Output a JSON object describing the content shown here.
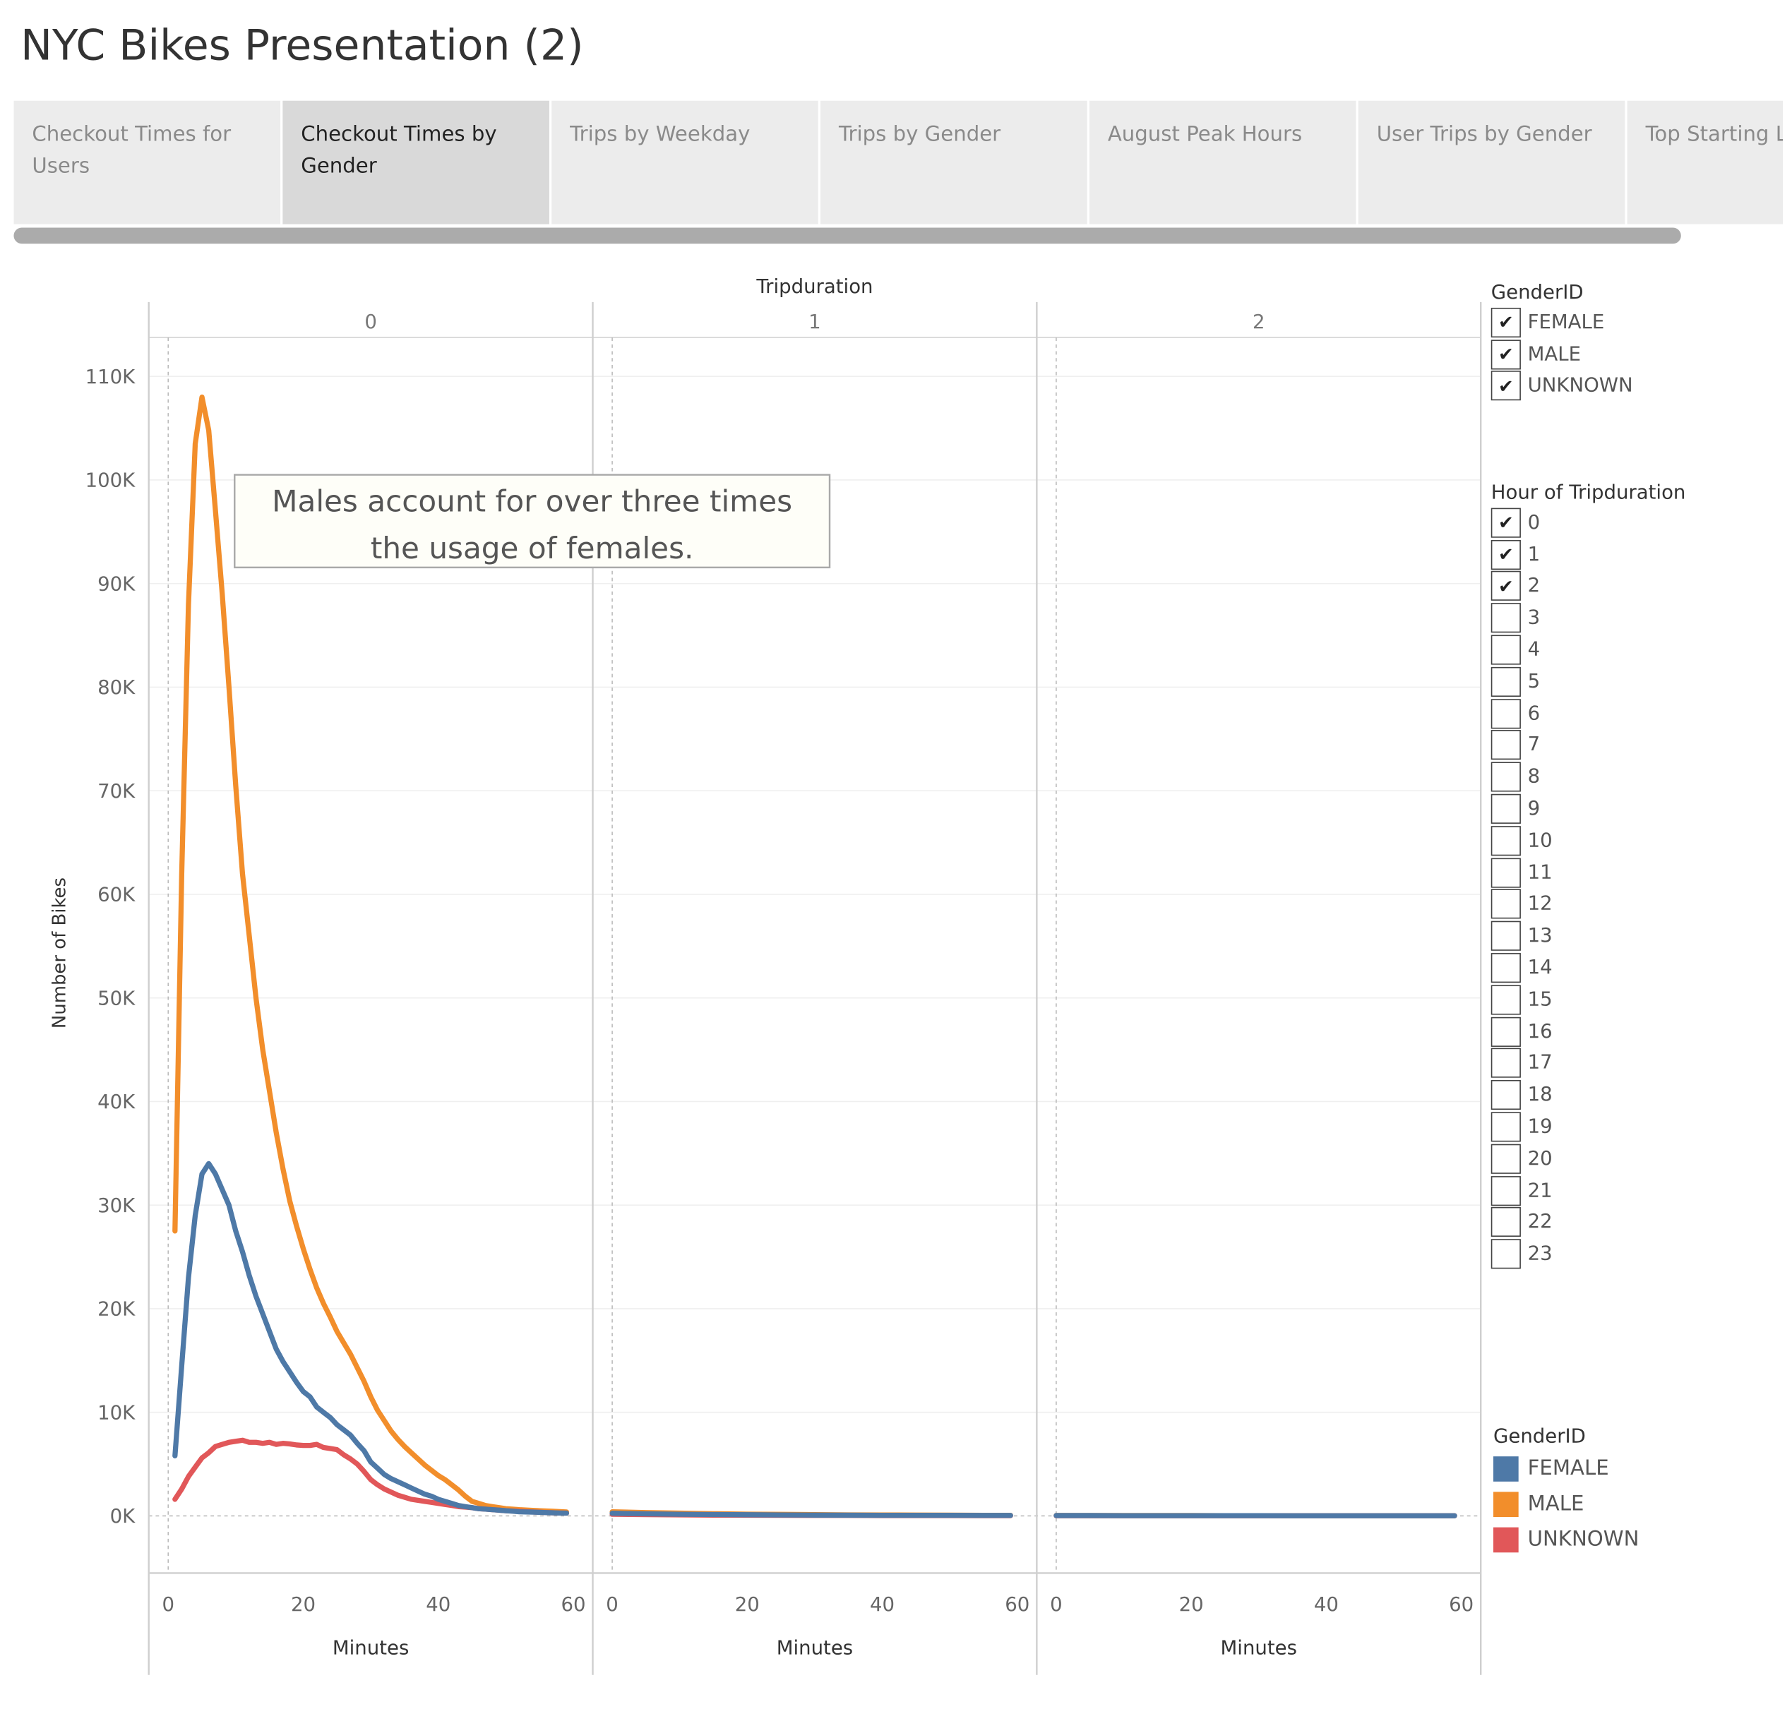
{
  "dashboard_title": "NYC Bikes Presentation (2)",
  "tabs": [
    {
      "label": "Checkout Times for Users",
      "active": false
    },
    {
      "label": "Checkout Times by Gender",
      "active": true
    },
    {
      "label": "Trips by Weekday",
      "active": false
    },
    {
      "label": "Trips by Gender",
      "active": false
    },
    {
      "label": "August Peak Hours",
      "active": false
    },
    {
      "label": "User Trips by Gender",
      "active": false
    },
    {
      "label": "Top Starting Locations",
      "active": false
    }
  ],
  "gender_filter": {
    "title": "GenderID",
    "options": [
      {
        "label": "FEMALE",
        "checked": true
      },
      {
        "label": "MALE",
        "checked": true
      },
      {
        "label": "UNKNOWN",
        "checked": true
      }
    ]
  },
  "hour_filter": {
    "title": "Hour of Tripduration",
    "options": [
      {
        "label": "0",
        "checked": true
      },
      {
        "label": "1",
        "checked": true
      },
      {
        "label": "2",
        "checked": true
      },
      {
        "label": "3",
        "checked": false
      },
      {
        "label": "4",
        "checked": false
      },
      {
        "label": "5",
        "checked": false
      },
      {
        "label": "6",
        "checked": false
      },
      {
        "label": "7",
        "checked": false
      },
      {
        "label": "8",
        "checked": false
      },
      {
        "label": "9",
        "checked": false
      },
      {
        "label": "10",
        "checked": false
      },
      {
        "label": "11",
        "checked": false
      },
      {
        "label": "12",
        "checked": false
      },
      {
        "label": "13",
        "checked": false
      },
      {
        "label": "14",
        "checked": false
      },
      {
        "label": "15",
        "checked": false
      },
      {
        "label": "16",
        "checked": false
      },
      {
        "label": "17",
        "checked": false
      },
      {
        "label": "18",
        "checked": false
      },
      {
        "label": "19",
        "checked": false
      },
      {
        "label": "20",
        "checked": false
      },
      {
        "label": "21",
        "checked": false
      },
      {
        "label": "22",
        "checked": false
      },
      {
        "label": "23",
        "checked": false
      }
    ]
  },
  "color_legend": {
    "title": "GenderID",
    "items": [
      {
        "label": "FEMALE",
        "color": "#4e79a7"
      },
      {
        "label": "MALE",
        "color": "#f28e2b"
      },
      {
        "label": "UNKNOWN",
        "color": "#e15759"
      }
    ]
  },
  "chart_data": {
    "type": "line",
    "column_header": "Tripduration",
    "panels": [
      "0",
      "1",
      "2"
    ],
    "xlabel": "Minutes",
    "ylabel": "Number of Bikes",
    "xlim": [
      0,
      60
    ],
    "ylim": [
      0,
      110000
    ],
    "xticks": [
      0,
      20,
      40,
      60
    ],
    "xtick_labels": [
      "0",
      "20",
      "40",
      "60"
    ],
    "yticks": [
      0,
      10000,
      20000,
      30000,
      40000,
      50000,
      60000,
      70000,
      80000,
      90000,
      100000,
      110000
    ],
    "ytick_labels": [
      "0K",
      "10K",
      "20K",
      "30K",
      "40K",
      "50K",
      "60K",
      "70K",
      "80K",
      "90K",
      "100K",
      "110K"
    ],
    "grid": true,
    "legend_position": "right",
    "annotation": {
      "panel": "0",
      "lines": [
        "Males account for over three times",
        "the usage of females."
      ]
    },
    "series": [
      {
        "name": "FEMALE",
        "color": "#4e79a7",
        "panels": [
          {
            "panel": "0",
            "x": [
              1,
              2,
              3,
              4,
              5,
              6,
              7,
              8,
              9,
              10,
              11,
              12,
              13,
              14,
              15,
              16,
              17,
              18,
              19,
              20,
              21,
              22,
              23,
              24,
              25,
              26,
              27,
              28,
              29,
              30,
              31,
              32,
              33,
              34,
              35,
              36,
              37,
              38,
              39,
              40,
              41,
              42,
              43,
              44,
              45,
              46,
              47,
              48,
              49,
              50,
              51,
              52,
              53,
              54,
              55,
              56,
              57,
              58,
              59
            ],
            "y": [
              5800,
              14500,
              23000,
              29000,
              33000,
              34000,
              33000,
              31500,
              30000,
              27500,
              25500,
              23200,
              21200,
              19500,
              17800,
              16100,
              14900,
              13900,
              12900,
              12000,
              11500,
              10500,
              10000,
              9500,
              8800,
              8300,
              7800,
              7000,
              6300,
              5200,
              4600,
              4000,
              3600,
              3300,
              3000,
              2700,
              2400,
              2100,
              1900,
              1600,
              1400,
              1200,
              1000,
              900,
              800,
              700,
              650,
              600,
              550,
              500,
              450,
              400,
              380,
              360,
              340,
              320,
              300,
              280,
              260
            ]
          },
          {
            "panel": "1",
            "x": [
              0,
              5,
              10,
              15,
              20,
              25,
              30,
              35,
              40,
              45,
              50,
              55,
              59
            ],
            "y": [
              250,
              200,
              160,
              130,
              110,
              90,
              80,
              70,
              60,
              55,
              50,
              45,
              40
            ]
          },
          {
            "panel": "2",
            "x": [
              0,
              5,
              10,
              15,
              20,
              25,
              30,
              35,
              40,
              45,
              50,
              55,
              59
            ],
            "y": [
              30,
              28,
              26,
              24,
              22,
              20,
              18,
              16,
              15,
              14,
              13,
              12,
              11
            ]
          }
        ]
      },
      {
        "name": "MALE",
        "color": "#f28e2b",
        "panels": [
          {
            "panel": "0",
            "x": [
              1,
              2,
              3,
              4,
              5,
              6,
              7,
              8,
              9,
              10,
              11,
              12,
              13,
              14,
              15,
              16,
              17,
              18,
              19,
              20,
              21,
              22,
              23,
              24,
              25,
              26,
              27,
              28,
              29,
              30,
              31,
              32,
              33,
              34,
              35,
              36,
              37,
              38,
              39,
              40,
              41,
              42,
              43,
              44,
              45,
              46,
              47,
              48,
              49,
              50,
              51,
              52,
              53,
              54,
              55,
              56,
              57,
              58,
              59
            ],
            "y": [
              27500,
              62000,
              88000,
              103500,
              108000,
              104800,
              97000,
              89000,
              80000,
              70500,
              62000,
              56000,
              50000,
              45000,
              41000,
              37000,
              33500,
              30400,
              28000,
              25800,
              23800,
              22000,
              20500,
              19200,
              17800,
              16700,
              15600,
              14300,
              13000,
              11500,
              10200,
              9200,
              8200,
              7400,
              6700,
              6100,
              5500,
              4900,
              4400,
              3900,
              3500,
              3000,
              2500,
              1900,
              1400,
              1200,
              1000,
              900,
              800,
              700,
              650,
              600,
              560,
              530,
              500,
              470,
              440,
              410,
              380
            ]
          },
          {
            "panel": "1",
            "x": [
              0,
              5,
              10,
              15,
              20,
              25,
              30,
              35,
              40,
              45,
              50,
              55,
              59
            ],
            "y": [
              400,
              320,
              260,
              210,
              170,
              140,
              120,
              100,
              85,
              75,
              65,
              58,
              50
            ]
          },
          {
            "panel": "2",
            "x": [
              0,
              5,
              10,
              15,
              20,
              25,
              30,
              35,
              40,
              45,
              50,
              55,
              59
            ],
            "y": [
              40,
              36,
              32,
              30,
              28,
              26,
              24,
              22,
              20,
              18,
              17,
              16,
              15
            ]
          }
        ]
      },
      {
        "name": "UNKNOWN",
        "color": "#e15759",
        "panels": [
          {
            "panel": "0",
            "x": [
              1,
              2,
              3,
              4,
              5,
              6,
              7,
              8,
              9,
              10,
              11,
              12,
              13,
              14,
              15,
              16,
              17,
              18,
              19,
              20,
              21,
              22,
              23,
              24,
              25,
              26,
              27,
              28,
              29,
              30,
              31,
              32,
              33,
              34,
              35,
              36,
              37,
              38,
              39,
              40,
              41,
              42,
              43,
              44,
              45,
              46,
              47,
              48,
              49,
              50,
              51,
              52,
              53,
              54,
              55,
              56,
              57,
              58,
              59
            ],
            "y": [
              1600,
              2600,
              3800,
              4700,
              5600,
              6100,
              6700,
              6900,
              7100,
              7200,
              7300,
              7100,
              7100,
              7000,
              7100,
              6900,
              7000,
              6950,
              6850,
              6800,
              6800,
              6900,
              6600,
              6500,
              6400,
              5900,
              5500,
              5000,
              4300,
              3500,
              3000,
              2600,
              2300,
              2000,
              1800,
              1600,
              1500,
              1400,
              1300,
              1200,
              1100,
              1000,
              900,
              850,
              800,
              700,
              650,
              600,
              550,
              500,
              470,
              440,
              410,
              380,
              350,
              320,
              300,
              280,
              260
            ]
          },
          {
            "panel": "1",
            "x": [
              0,
              5,
              10,
              15,
              20,
              25,
              30,
              35,
              40,
              45,
              50,
              55,
              59
            ],
            "y": [
              150,
              120,
              100,
              80,
              65,
              55,
              45,
              40,
              35,
              30,
              28,
              25,
              22
            ]
          },
          {
            "panel": "2",
            "x": [
              0,
              5,
              10,
              15,
              20,
              25,
              30,
              35,
              40,
              45,
              50,
              55,
              59
            ],
            "y": [
              15,
              14,
              13,
              12,
              11,
              10,
              9,
              8,
              8,
              7,
              7,
              6,
              6
            ]
          }
        ]
      }
    ]
  }
}
